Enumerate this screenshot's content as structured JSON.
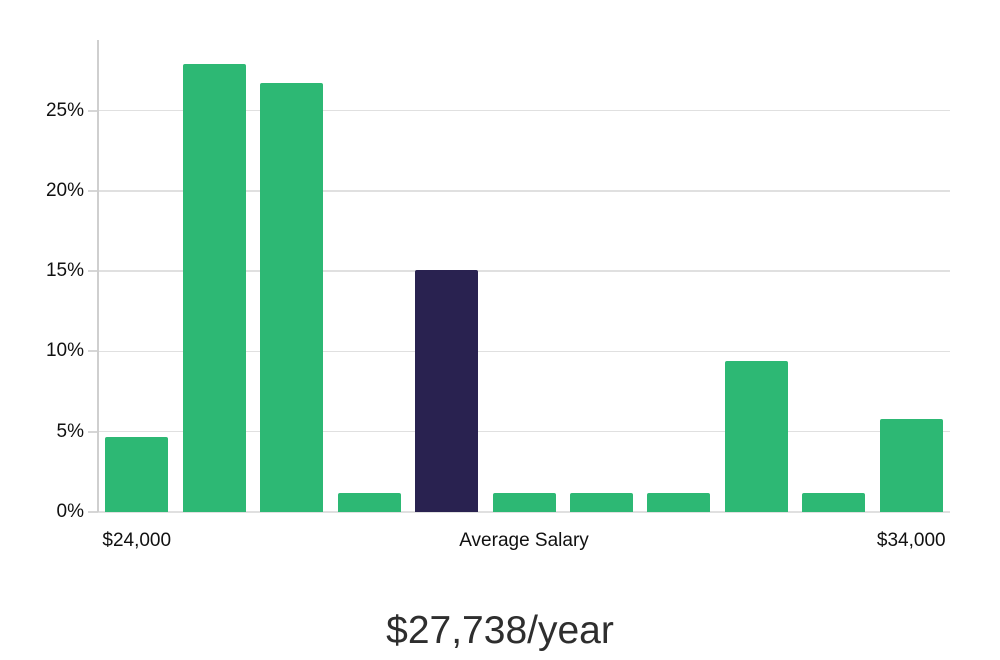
{
  "chart_data": {
    "type": "bar",
    "title": "$27,738/year",
    "xlabel": "",
    "ylabel": "",
    "grid": "horizontal",
    "legend": "none",
    "y_axis": {
      "unit": "%",
      "max": 29.4,
      "ticks": [
        {
          "value": 0,
          "label": "0%"
        },
        {
          "value": 5,
          "label": "5%"
        },
        {
          "value": 10,
          "label": "10%"
        },
        {
          "value": 15,
          "label": "15%"
        },
        {
          "value": 20,
          "label": "20%"
        },
        {
          "value": 25,
          "label": "25%"
        }
      ]
    },
    "x_axis": {
      "labels": [
        {
          "text": "$24,000",
          "slot": 0
        },
        {
          "text": "Average Salary",
          "slot": 5
        },
        {
          "text": "$34,000",
          "slot": 10
        }
      ]
    },
    "values": [
      4.7,
      27.9,
      26.7,
      1.2,
      15.1,
      1.2,
      1.2,
      1.2,
      9.4,
      1.2,
      5.8
    ],
    "highlight_index": 4,
    "highlight_label": "Average Salary",
    "colors": {
      "bar": "#2db874",
      "highlight": "#292250",
      "gridline": "#e0e0e0",
      "axis": "#cfcfcf",
      "tick_text": "#111111",
      "title_text": "#2e2e2e"
    }
  }
}
